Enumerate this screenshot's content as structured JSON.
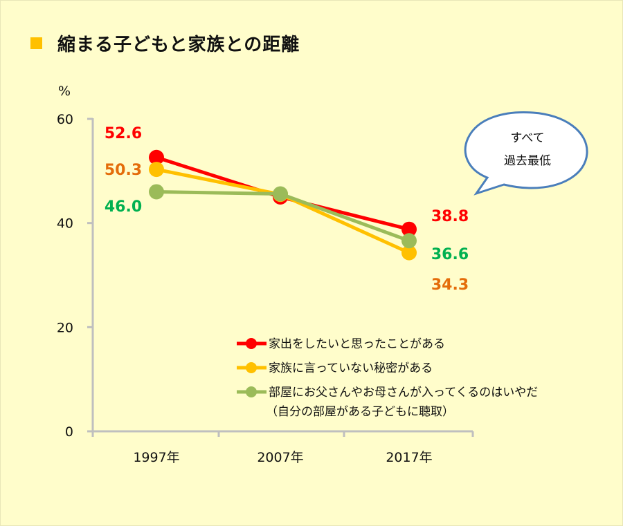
{
  "title": "縮まる子どもと家族との距離",
  "colors": {
    "background": "#FFFDCB",
    "title_mark": "#FFC000",
    "axis": "#BFBFBF",
    "bubble_stroke": "#4A7EBB"
  },
  "callout": {
    "line1": "すべて",
    "line2": "過去最低"
  },
  "chart_data": {
    "type": "line",
    "title": "縮まる子どもと家族との距離",
    "ylabel": "%",
    "xlabel": "",
    "ylim": [
      0,
      60
    ],
    "yticks": [
      "0",
      "20",
      "40",
      "60"
    ],
    "ytick_values": [
      0,
      20,
      40,
      60
    ],
    "categories": [
      "1997年",
      "2007年",
      "2017年"
    ],
    "grid": false,
    "legend_position": "bottom-right",
    "legend_note": "（自分の部屋がある子どもに聴取）",
    "series": [
      {
        "name": "家出をしたいと思ったことがある",
        "color": "#FF0000",
        "label_color": "#FF0000",
        "values": [
          52.6,
          45.0,
          38.8
        ],
        "labels": [
          "52.6",
          null,
          "38.8"
        ]
      },
      {
        "name": "家族に言っていない秘密がある",
        "color": "#FFC000",
        "label_color": "#E46C0A",
        "values": [
          50.3,
          45.5,
          34.3
        ],
        "labels": [
          "50.3",
          null,
          "34.3"
        ]
      },
      {
        "name": "部屋にお父さんやお母さんが入ってくるのはいやだ",
        "color": "#9BBB59",
        "label_color": "#00B050",
        "values": [
          46.0,
          45.6,
          36.6
        ],
        "labels": [
          "46.0",
          null,
          "36.6"
        ]
      }
    ]
  }
}
